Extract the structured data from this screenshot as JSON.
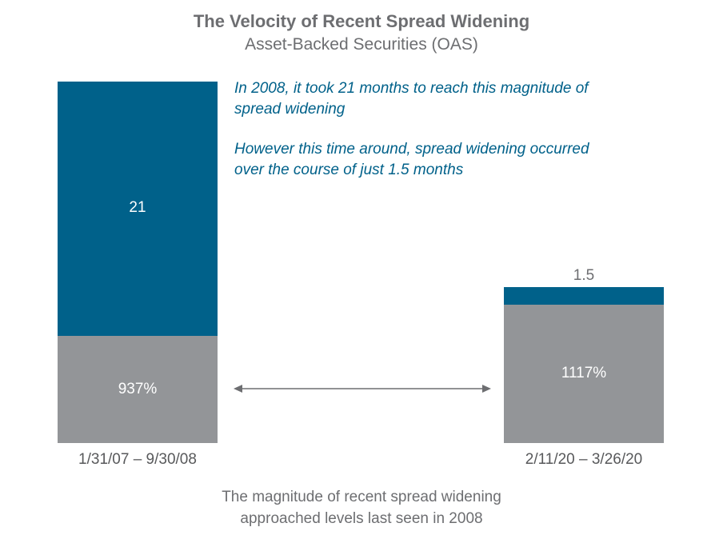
{
  "chart_data": {
    "type": "bar",
    "title": "The Velocity of Recent Spread Widening",
    "subtitle": "Asset-Backed Securities (OAS)",
    "categories": [
      "1/31/07 – 9/30/08",
      "2/11/20 – 3/26/20"
    ],
    "series": [
      {
        "values": [
          "937%",
          "1117%"
        ],
        "color": "#939598"
      },
      {
        "values": [
          "21",
          "1.5"
        ],
        "color": "#00618a"
      }
    ],
    "annotations": [
      "In 2008, it took 21 months to reach this magnitude of spread widening",
      "However this time around, spread widening occurred over the course of just 1.5 months"
    ],
    "footer_lines": [
      "The magnitude of recent spread widening",
      "approached levels last seen in 2008"
    ]
  },
  "colors": {
    "blue": "#00618a",
    "gray": "#939598",
    "text": "#6d6e71"
  }
}
